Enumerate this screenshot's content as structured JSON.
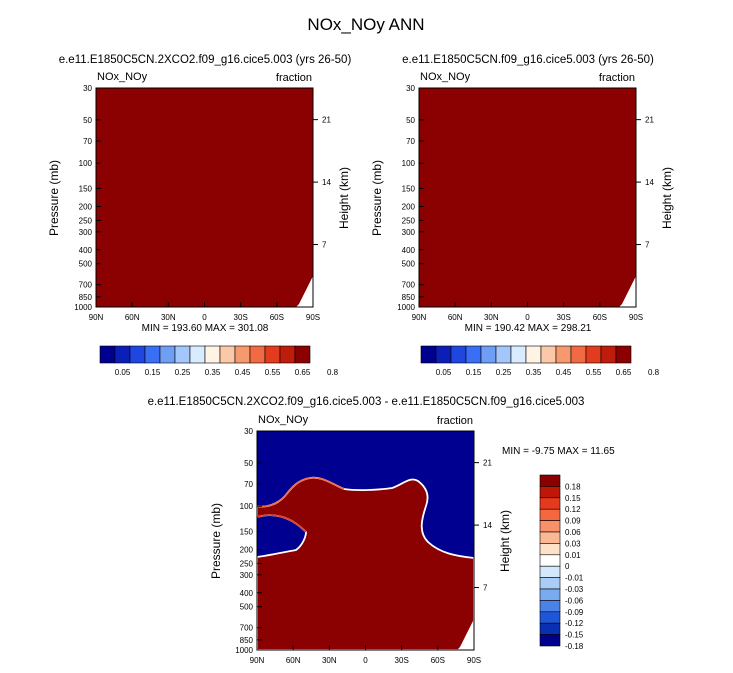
{
  "page_title": "NOx_NOy ANN",
  "colors": {
    "fill_dark_red": "#8b0000",
    "fill_dark_blue": "#000090",
    "field_palette": [
      "#00008f",
      "#0b1fb8",
      "#1f47e0",
      "#3a6ff5",
      "#6f9ff5",
      "#a4c6fa",
      "#d8ebff",
      "#fff3e4",
      "#fbc9a8",
      "#f7996f",
      "#f26a42",
      "#e23b1d",
      "#bf1c0c",
      "#8b0000"
    ],
    "diff_palette": [
      "#8b0000",
      "#c0160a",
      "#e63a1e",
      "#f5673f",
      "#f8916a",
      "#fbb895",
      "#fde1c8",
      "#ffffff",
      "#d4e8fb",
      "#a9cdf6",
      "#7aabef",
      "#4a82e6",
      "#1f55d6",
      "#0a2fb3",
      "#00008f"
    ]
  },
  "chart_data": [
    {
      "id": "top-left",
      "type": "heatmap",
      "title": "e.e11.E1850C5CN.2XCO2.f09_g16.cice5.003 (yrs 26-50)",
      "variable_label": "NOx_NOy",
      "units_label": "fraction",
      "xlabel": "",
      "ylabel": "Pressure (mb)",
      "ylabel_right": "Height (km)",
      "x_ticks": [
        "90N",
        "60N",
        "30N",
        "0",
        "30S",
        "60S",
        "90S"
      ],
      "y_ticks": [
        "30",
        "50",
        "70",
        "100",
        "150",
        "200",
        "250",
        "300",
        "400",
        "500",
        "700",
        "850",
        "1000"
      ],
      "y_ticks_right": [
        "21",
        "14",
        "7"
      ],
      "stats": "MIN = 193.60   MAX = 301.08",
      "colorbar_labels": [
        "0.05",
        "0.15",
        "0.25",
        "0.35",
        "0.45",
        "0.55",
        "0.65",
        "0.8"
      ],
      "field_value": "saturated at maximum color",
      "min": 193.6,
      "max": 301.08
    },
    {
      "id": "top-right",
      "type": "heatmap",
      "title": "e.e11.E1850C5CN.f09_g16.cice5.003 (yrs 26-50)",
      "variable_label": "NOx_NOy",
      "units_label": "fraction",
      "xlabel": "",
      "ylabel": "Pressure (mb)",
      "ylabel_right": "Height (km)",
      "x_ticks": [
        "90N",
        "60N",
        "30N",
        "0",
        "30S",
        "60S",
        "90S"
      ],
      "y_ticks": [
        "30",
        "50",
        "70",
        "100",
        "150",
        "200",
        "250",
        "300",
        "400",
        "500",
        "700",
        "850",
        "1000"
      ],
      "y_ticks_right": [
        "21",
        "14",
        "7"
      ],
      "stats": "MIN = 190.42   MAX = 298.21",
      "colorbar_labels": [
        "0.05",
        "0.15",
        "0.25",
        "0.35",
        "0.45",
        "0.55",
        "0.65",
        "0.8"
      ],
      "field_value": "saturated at maximum color",
      "min": 190.42,
      "max": 298.21
    },
    {
      "id": "difference",
      "type": "heatmap",
      "title": "e.e11.E1850C5CN.2XCO2.f09_g16.cice5.003 - e.e11.E1850C5CN.f09_g16.cice5.003",
      "variable_label": "NOx_NOy",
      "units_label": "fraction",
      "xlabel": "",
      "ylabel": "Pressure (mb)",
      "ylabel_right": "Height (km)",
      "x_ticks": [
        "90N",
        "60N",
        "30N",
        "0",
        "30S",
        "60S",
        "90S"
      ],
      "y_ticks": [
        "30",
        "50",
        "70",
        "100",
        "150",
        "200",
        "250",
        "300",
        "400",
        "500",
        "700",
        "850",
        "1000"
      ],
      "y_ticks_right": [
        "21",
        "14",
        "7"
      ],
      "stats": "MIN =  -9.75   MAX =  11.65",
      "colorbar_labels": [
        "0.18",
        "0.15",
        "0.12",
        "0.09",
        "0.06",
        "0.03",
        "0.01",
        "0",
        "-0.01",
        "-0.03",
        "-0.06",
        "-0.09",
        "-0.12",
        "-0.15",
        "-0.18"
      ],
      "min": -9.75,
      "max": 11.65
    }
  ]
}
